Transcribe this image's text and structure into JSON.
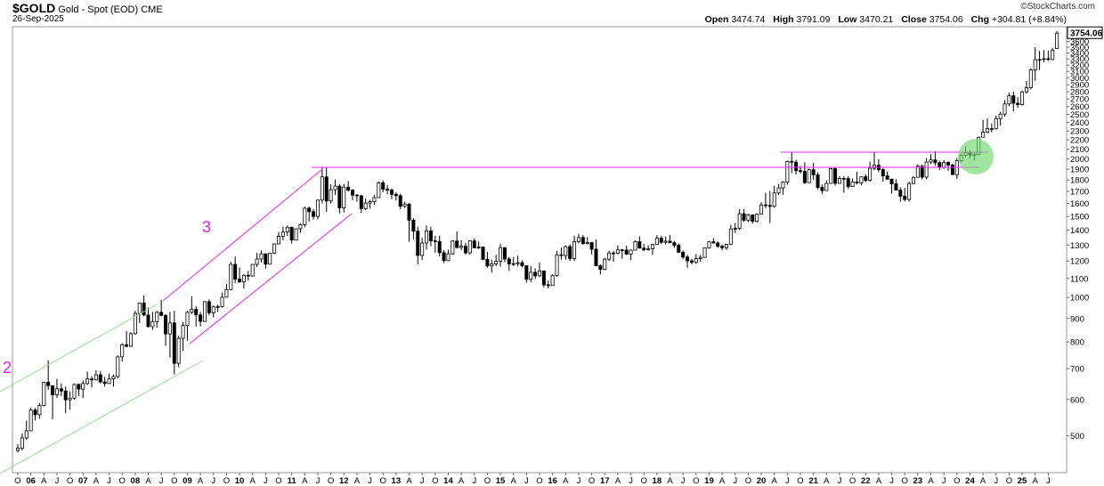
{
  "chart_data": {
    "type": "candlestick",
    "title": "$GOLD",
    "name": "Gold - Spot (EOD)",
    "exchange": "CME",
    "date": "26-Sep-2025",
    "credit": "©StockCharts.com",
    "ohlc_labels": [
      "Open",
      "High",
      "Low",
      "Close",
      "Chg"
    ],
    "change": "+304.81 (+8.84%)",
    "annotations": [
      "2",
      "3"
    ],
    "log_scale": true,
    "grid": false,
    "up_color": "#ffffff",
    "down_color": "#000000",
    "ylim": [
      416,
      3877
    ],
    "yticks": [
      500,
      600,
      700,
      800,
      900,
      1000,
      1100,
      1200,
      1300,
      1400,
      1500,
      1600,
      1700,
      1800,
      1900,
      2000,
      2100,
      2200,
      2300,
      2400,
      2500,
      2600,
      2700,
      2800,
      2900,
      3000,
      3100,
      3200,
      3300,
      3400,
      3500,
      3600
    ],
    "categories": [
      "O",
      null,
      null,
      "06",
      null,
      null,
      "A",
      null,
      null,
      "J",
      null,
      null,
      "O",
      null,
      null,
      "07",
      null,
      null,
      "A",
      null,
      null,
      "J",
      null,
      null,
      "O",
      null,
      null,
      "08",
      null,
      null,
      "A",
      null,
      null,
      "J",
      null,
      null,
      "O",
      null,
      null,
      "09",
      null,
      null,
      "A",
      null,
      null,
      "J",
      null,
      null,
      "O",
      null,
      null,
      "10",
      null,
      null,
      "A",
      null,
      null,
      "J",
      null,
      null,
      "O",
      null,
      null,
      "11",
      null,
      null,
      "A",
      null,
      null,
      "J",
      null,
      null,
      "O",
      null,
      null,
      "12",
      null,
      null,
      "A",
      null,
      null,
      "J",
      null,
      null,
      "O",
      null,
      null,
      "13",
      null,
      null,
      "A",
      null,
      null,
      "J",
      null,
      null,
      "O",
      null,
      null,
      "14",
      null,
      null,
      "A",
      null,
      null,
      "J",
      null,
      null,
      "O",
      null,
      null,
      "15",
      null,
      null,
      "A",
      null,
      null,
      "J",
      null,
      null,
      "O",
      null,
      null,
      "16",
      null,
      null,
      "A",
      null,
      null,
      "J",
      null,
      null,
      "O",
      null,
      null,
      "17",
      null,
      null,
      "A",
      null,
      null,
      "J",
      null,
      null,
      "O",
      null,
      null,
      "18",
      null,
      null,
      "A",
      null,
      null,
      "J",
      null,
      null,
      "O",
      null,
      null,
      "19",
      null,
      null,
      "A",
      null,
      null,
      "J",
      null,
      null,
      "O",
      null,
      null,
      "20",
      null,
      null,
      "A",
      null,
      null,
      "J",
      null,
      null,
      "O",
      null,
      null,
      "21",
      null,
      null,
      "A",
      null,
      null,
      "J",
      null,
      null,
      "O",
      null,
      null,
      "22",
      null,
      null,
      "A",
      null,
      null,
      "J",
      null,
      null,
      "O",
      null,
      null,
      "23",
      null,
      null,
      "A",
      null,
      null,
      "J",
      null,
      null,
      "O",
      null,
      null,
      "24",
      null,
      null,
      "A",
      null,
      null,
      "J",
      null,
      null,
      "O",
      null,
      null,
      "25",
      null,
      null,
      "A",
      null,
      null,
      "J",
      null,
      null
    ],
    "open": [
      465,
      470,
      495,
      513,
      569,
      556,
      582,
      654,
      643,
      614,
      633,
      626,
      599,
      604,
      647,
      632,
      650,
      665,
      662,
      679,
      655,
      650,
      665,
      673,
      743,
      789,
      783,
      834,
      923,
      972,
      916,
      864,
      886,
      928,
      914,
      833,
      880,
      719,
      815,
      869,
      928,
      942,
      916,
      887,
      979,
      926,
      954,
      955,
      1001,
      1040,
      1180,
      1096,
      1081,
      1117,
      1113,
      1180,
      1212,
      1244,
      1181,
      1248,
      1307,
      1358,
      1387,
      1421,
      1333,
      1410,
      1439,
      1563,
      1536,
      1500,
      1628,
      1828,
      1620,
      1715,
      1746,
      1566,
      1737,
      1710,
      1669,
      1664,
      1560,
      1604,
      1615,
      1648,
      1774,
      1719,
      1711,
      1675,
      1664,
      1578,
      1596,
      1472,
      1393,
      1234,
      1313,
      1395,
      1327,
      1323,
      1251,
      1202,
      1244,
      1326,
      1284,
      1292,
      1250,
      1327,
      1282,
      1287,
      1210,
      1171,
      1183,
      1199,
      1283,
      1212,
      1183,
      1184,
      1190,
      1172,
      1095,
      1134,
      1114,
      1142,
      1065,
      1061,
      1117,
      1238,
      1233,
      1290,
      1215,
      1322,
      1350,
      1309,
      1316,
      1273,
      1172,
      1151,
      1211,
      1249,
      1248,
      1269,
      1268,
      1242,
      1267,
      1322,
      1280,
      1270,
      1275,
      1303,
      1345,
      1318,
      1325,
      1315,
      1298,
      1253,
      1224,
      1201,
      1192,
      1214,
      1222,
      1282,
      1321,
      1313,
      1292,
      1283,
      1305,
      1409,
      1413,
      1520,
      1472,
      1511,
      1464,
      1517,
      1589,
      1585,
      1577,
      1687,
      1730,
      1781,
      1975,
      1968,
      1886,
      1879,
      1776,
      1895,
      1847,
      1734,
      1707,
      1769,
      1905,
      1770,
      1814,
      1813,
      1742,
      1783,
      1774,
      1829,
      1796,
      1909,
      1937,
      1896,
      1837,
      1807,
      1766,
      1711,
      1660,
      1633,
      1768,
      1824,
      1928,
      1826,
      1969,
      1990,
      1962,
      1919,
      1965,
      1940,
      1849,
      1983,
      2036,
      2063,
      2039,
      2044,
      2230,
      2286,
      2327,
      2326,
      2447,
      2503,
      2634,
      2744,
      2643,
      2625,
      2798,
      2857,
      3124,
      3289,
      3289,
      3303,
      3290,
      3474.74
    ],
    "high": [
      480,
      506,
      540,
      575,
      575,
      590,
      656,
      730,
      640,
      665,
      650,
      640,
      625,
      650,
      650,
      660,
      690,
      674,
      695,
      692,
      672,
      683,
      680,
      748,
      795,
      845,
      840,
      935,
      975,
      1011,
      950,
      930,
      935,
      988,
      920,
      930,
      935,
      825,
      885,
      935,
      1005,
      957,
      930,
      982,
      990,
      960,
      965,
      1025,
      1070,
      1195,
      1227,
      1162,
      1123,
      1142,
      1180,
      1250,
      1265,
      1245,
      1250,
      1310,
      1388,
      1425,
      1432,
      1424,
      1412,
      1448,
      1575,
      1577,
      1555,
      1632,
      1913,
      1920,
      1760,
      1804,
      1764,
      1764,
      1791,
      1720,
      1678,
      1669,
      1640,
      1630,
      1672,
      1788,
      1796,
      1755,
      1725,
      1695,
      1680,
      1616,
      1605,
      1487,
      1424,
      1348,
      1434,
      1425,
      1361,
      1362,
      1267,
      1270,
      1332,
      1392,
      1331,
      1315,
      1332,
      1345,
      1323,
      1290,
      1255,
      1208,
      1238,
      1307,
      1286,
      1224,
      1224,
      1232,
      1205,
      1170,
      1170,
      1157,
      1191,
      1142,
      1088,
      1123,
      1263,
      1283,
      1297,
      1304,
      1362,
      1375,
      1367,
      1352,
      1318,
      1337,
      1180,
      1220,
      1264,
      1262,
      1296,
      1275,
      1296,
      1271,
      1331,
      1357,
      1306,
      1299,
      1308,
      1366,
      1361,
      1356,
      1366,
      1326,
      1309,
      1266,
      1237,
      1214,
      1243,
      1238,
      1284,
      1326,
      1346,
      1324,
      1303,
      1306,
      1439,
      1452,
      1555,
      1557,
      1519,
      1516,
      1523,
      1611,
      1689,
      1704,
      1747,
      1765,
      1789,
      1984,
      2075,
      1992,
      1933,
      1966,
      1906,
      1959,
      1872,
      1760,
      1798,
      1913,
      1917,
      1834,
      1833,
      1834,
      1814,
      1877,
      1831,
      1853,
      1974,
      2070,
      1998,
      1909,
      1879,
      1814,
      1807,
      1735,
      1730,
      1786,
      1833,
      1949,
      1945,
      2009,
      2048,
      2079,
      1983,
      1987,
      1979,
      1953,
      2009,
      2052,
      2135,
      2088,
      2065,
      2236,
      2431,
      2450,
      2388,
      2483,
      2531,
      2685,
      2790,
      2801,
      2726,
      2817,
      2956,
      3148,
      3500,
      3435,
      3452,
      3439,
      3490,
      3791.09
    ],
    "low": [
      460,
      465,
      490,
      512,
      540,
      545,
      580,
      630,
      543,
      605,
      610,
      560,
      570,
      600,
      610,
      605,
      645,
      637,
      660,
      650,
      640,
      648,
      640,
      667,
      725,
      780,
      781,
      830,
      880,
      910,
      860,
      850,
      860,
      910,
      785,
      740,
      680,
      705,
      765,
      805,
      920,
      865,
      865,
      885,
      915,
      905,
      930,
      950,
      1000,
      1040,
      1075,
      1075,
      1045,
      1088,
      1110,
      1165,
      1190,
      1155,
      1180,
      1243,
      1306,
      1330,
      1360,
      1310,
      1330,
      1382,
      1420,
      1462,
      1478,
      1478,
      1600,
      1535,
      1600,
      1670,
      1523,
      1530,
      1700,
      1627,
      1614,
      1527,
      1550,
      1560,
      1590,
      1645,
      1692,
      1675,
      1635,
      1625,
      1555,
      1565,
      1321,
      1338,
      1180,
      1206,
      1270,
      1292,
      1251,
      1227,
      1187,
      1199,
      1238,
      1277,
      1268,
      1240,
      1240,
      1280,
      1274,
      1205,
      1160,
      1131,
      1170,
      1167,
      1192,
      1142,
      1170,
      1168,
      1162,
      1077,
      1080,
      1098,
      1108,
      1052,
      1046,
      1061,
      1108,
      1208,
      1208,
      1200,
      1200,
      1310,
      1302,
      1304,
      1241,
      1171,
      1122,
      1146,
      1200,
      1195,
      1241,
      1214,
      1237,
      1205,
      1265,
      1277,
      1260,
      1264,
      1237,
      1301,
      1307,
      1303,
      1312,
      1282,
      1250,
      1211,
      1160,
      1180,
      1182,
      1196,
      1221,
      1276,
      1310,
      1281,
      1266,
      1268,
      1301,
      1381,
      1400,
      1459,
      1458,
      1446,
      1454,
      1517,
      1563,
      1451,
      1567,
      1670,
      1671,
      1757,
      1863,
      1848,
      1859,
      1764,
      1775,
      1802,
      1717,
      1677,
      1705,
      1766,
      1750,
      1767,
      1688,
      1721,
      1745,
      1759,
      1753,
      1780,
      1785,
      1890,
      1872,
      1785,
      1805,
      1681,
      1710,
      1615,
      1617,
      1616,
      1765,
      1823,
      1805,
      1805,
      1949,
      1933,
      1893,
      1902,
      1884,
      1846,
      1810,
      1965,
      2017,
      2001,
      1984,
      2040,
      2228,
      2277,
      2286,
      2318,
      2364,
      2471,
      2603,
      2536,
      2583,
      2614,
      2772,
      2832,
      2957,
      3121,
      3247,
      3268,
      3282,
      3470.21
    ],
    "close": [
      470,
      495,
      513,
      569,
      556,
      582,
      654,
      643,
      614,
      633,
      626,
      599,
      604,
      647,
      632,
      650,
      665,
      662,
      679,
      655,
      650,
      665,
      673,
      743,
      789,
      783,
      834,
      923,
      972,
      916,
      864,
      886,
      928,
      914,
      833,
      880,
      719,
      815,
      869,
      928,
      942,
      916,
      887,
      979,
      926,
      954,
      955,
      1001,
      1040,
      1180,
      1096,
      1081,
      1117,
      1113,
      1180,
      1212,
      1244,
      1181,
      1248,
      1307,
      1358,
      1387,
      1421,
      1333,
      1410,
      1439,
      1563,
      1536,
      1500,
      1628,
      1828,
      1620,
      1715,
      1746,
      1566,
      1737,
      1710,
      1669,
      1664,
      1560,
      1604,
      1615,
      1648,
      1774,
      1719,
      1711,
      1675,
      1664,
      1578,
      1596,
      1472,
      1393,
      1234,
      1313,
      1395,
      1327,
      1323,
      1251,
      1202,
      1244,
      1326,
      1284,
      1292,
      1250,
      1327,
      1282,
      1287,
      1210,
      1171,
      1183,
      1199,
      1283,
      1212,
      1183,
      1184,
      1190,
      1172,
      1095,
      1134,
      1114,
      1142,
      1065,
      1061,
      1117,
      1238,
      1233,
      1290,
      1215,
      1322,
      1350,
      1309,
      1316,
      1273,
      1172,
      1151,
      1211,
      1249,
      1248,
      1269,
      1268,
      1242,
      1267,
      1322,
      1280,
      1270,
      1275,
      1303,
      1345,
      1318,
      1325,
      1315,
      1298,
      1253,
      1224,
      1201,
      1192,
      1214,
      1222,
      1282,
      1321,
      1313,
      1292,
      1283,
      1305,
      1409,
      1413,
      1520,
      1472,
      1511,
      1464,
      1517,
      1589,
      1585,
      1577,
      1687,
      1730,
      1781,
      1975,
      1968,
      1886,
      1879,
      1776,
      1895,
      1847,
      1734,
      1707,
      1769,
      1905,
      1770,
      1814,
      1813,
      1742,
      1783,
      1774,
      1829,
      1796,
      1909,
      1937,
      1896,
      1837,
      1807,
      1766,
      1711,
      1660,
      1633,
      1768,
      1824,
      1928,
      1826,
      1969,
      1990,
      1962,
      1919,
      1965,
      1940,
      1849,
      1983,
      2036,
      2063,
      2039,
      2044,
      2230,
      2286,
      2327,
      2326,
      2447,
      2503,
      2634,
      2744,
      2643,
      2625,
      2798,
      2857,
      3124,
      3289,
      3289,
      3303,
      3290,
      3448,
      3754.06
    ]
  }
}
